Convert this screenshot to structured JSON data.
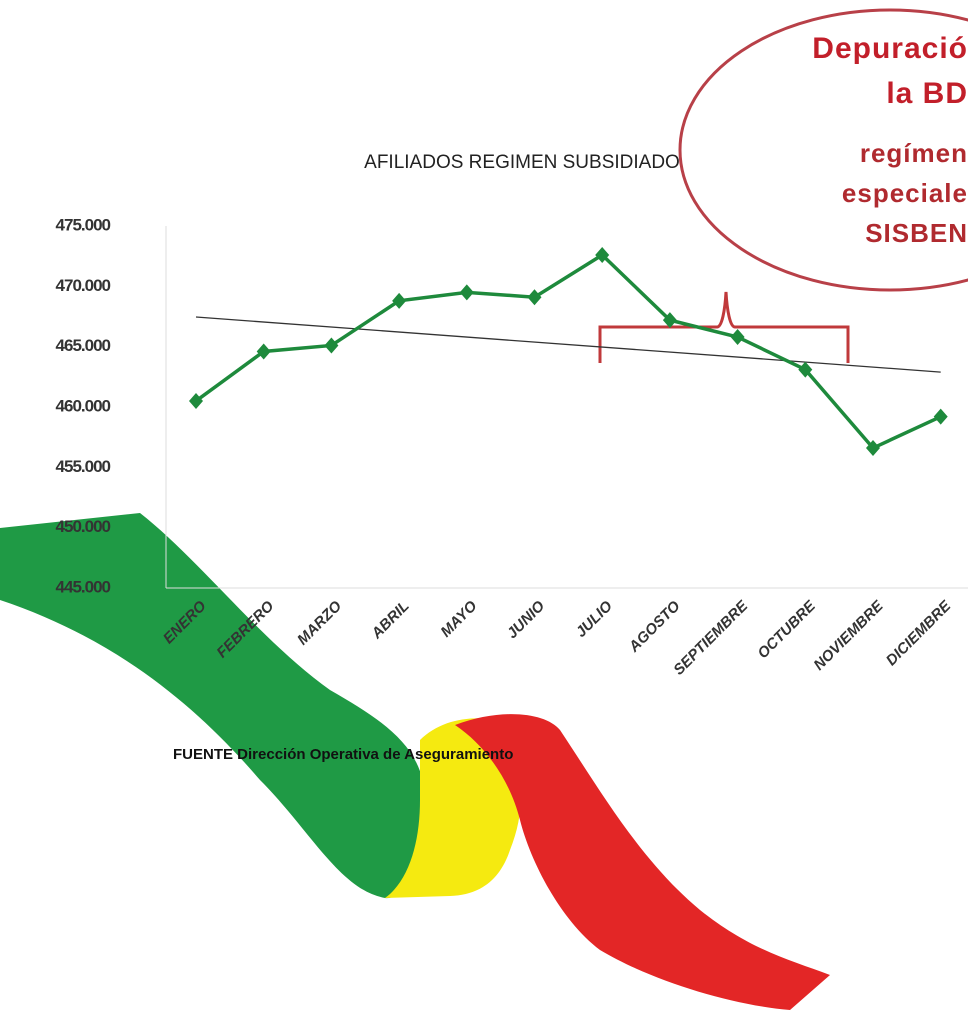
{
  "chart_data": {
    "type": "line",
    "title": "AFILIADOS  REGIMEN SUBSIDIADO",
    "categories": [
      "ENERO",
      "FEBRERO",
      "MARZO",
      "ABRIL",
      "MAYO",
      "JUNIO",
      "JULIO",
      "AGOSTO",
      "SEPTIEMBRE",
      "OCTUBRE",
      "NOVIEMBRE",
      "DICIEMBRE"
    ],
    "series": [
      {
        "name": "AFILIADOS",
        "color": "#1e8a3c",
        "values": [
          460500,
          464600,
          465100,
          468800,
          469500,
          469100,
          472600,
          467200,
          465800,
          463100,
          456600,
          459200
        ]
      }
    ],
    "ylim": [
      445000,
      475000
    ],
    "yticks": [
      {
        "value": 445000,
        "label": "445.000"
      },
      {
        "value": 450000,
        "label": "450.000"
      },
      {
        "value": 455000,
        "label": "455.000"
      },
      {
        "value": 460000,
        "label": "460.000"
      },
      {
        "value": 465000,
        "label": "465.000"
      },
      {
        "value": 470000,
        "label": "470.000"
      },
      {
        "value": 475000,
        "label": "475.000"
      }
    ],
    "trendline": true,
    "trendline_color": "#333333",
    "annotation": [
      "Depuració",
      "la BD",
      "regímen",
      "especiale",
      "SISBEN"
    ],
    "source": "FUENTE Dirección Operativa de Aseguramiento"
  }
}
